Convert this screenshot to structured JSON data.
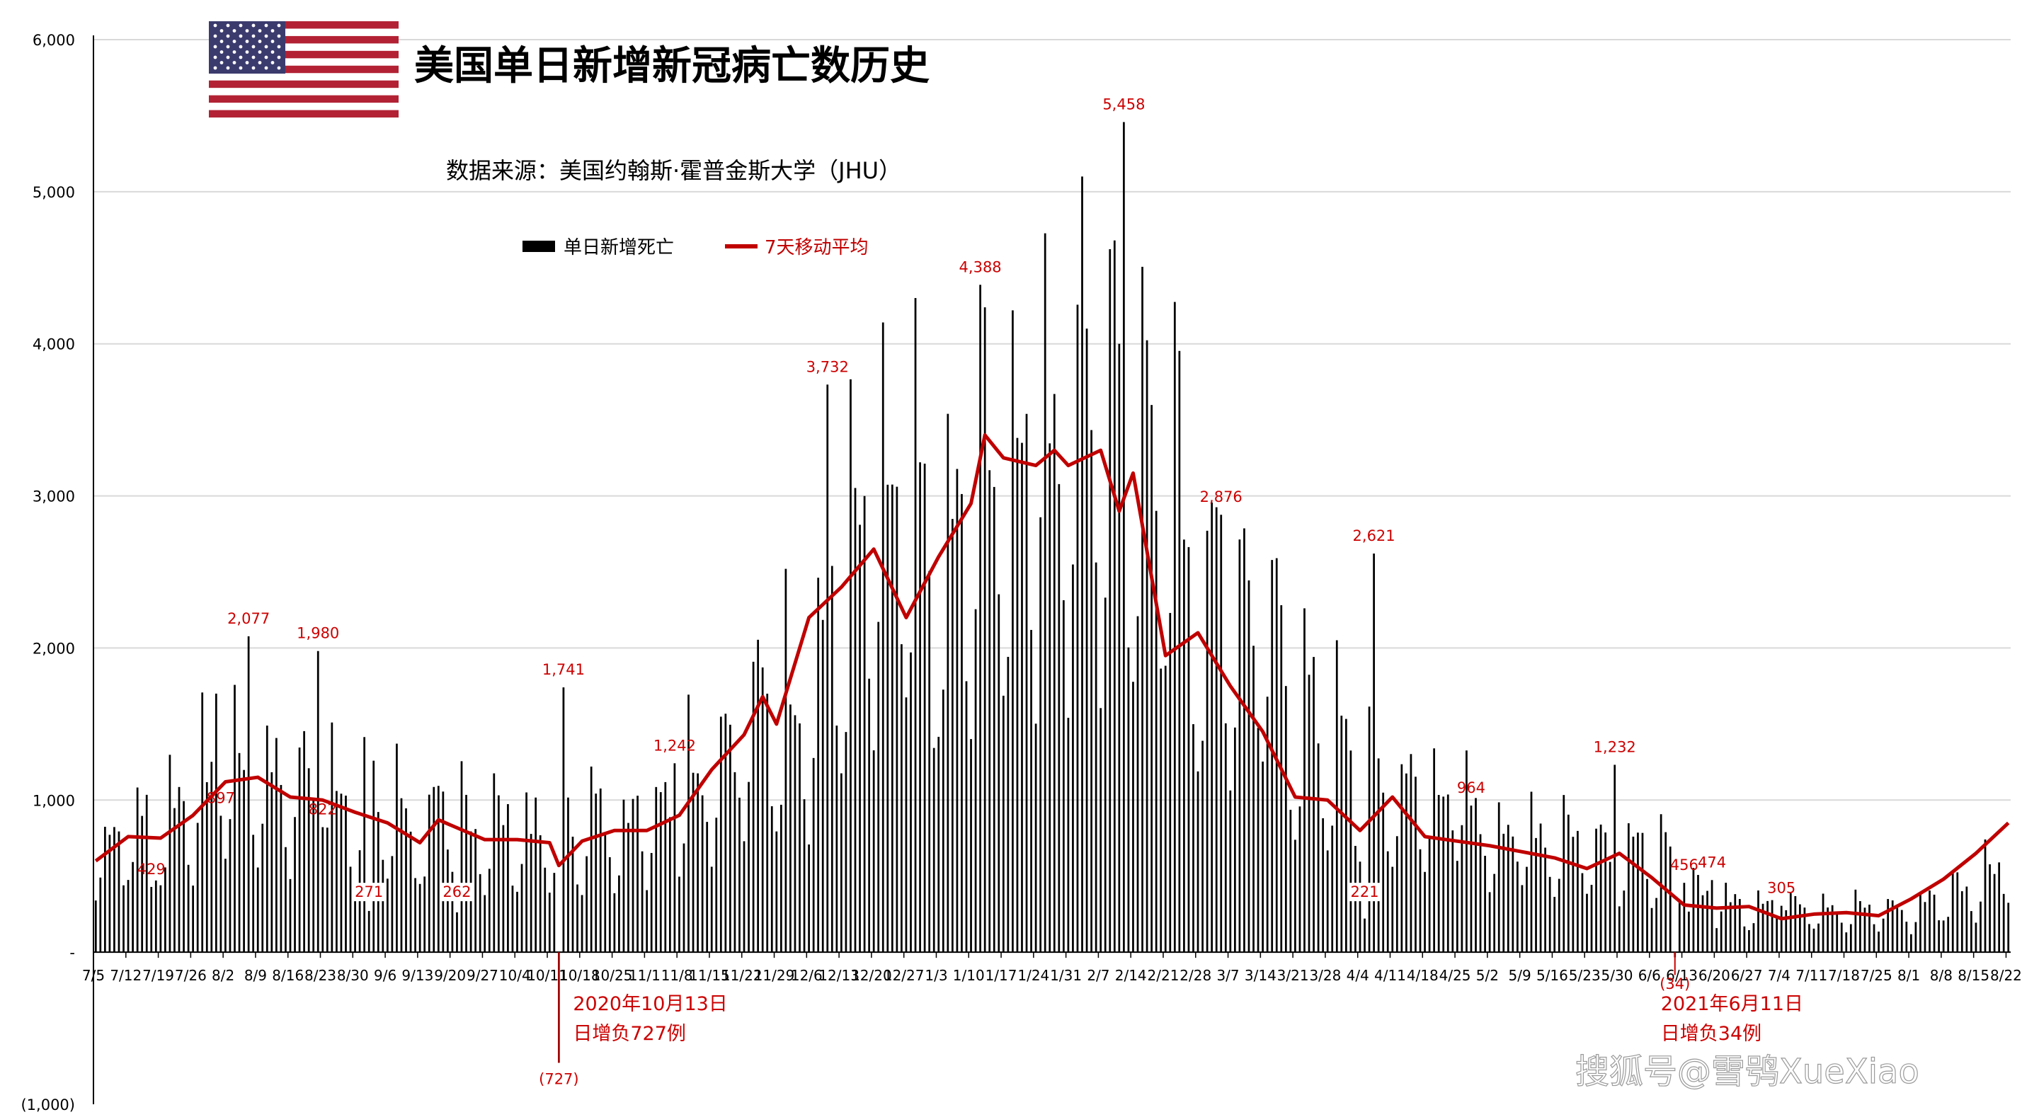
{
  "chart_data": {
    "type": "bar",
    "title": "美国单日新增新冠病亡数历史",
    "source": "数据来源：美国约翰斯·霍普金斯大学（JHU）",
    "legend": [
      {
        "name": "单日新增死亡",
        "color": "#000000",
        "kind": "bar"
      },
      {
        "name": "7天移动平均",
        "color": "#c00000",
        "kind": "line"
      }
    ],
    "legend_position": "top-left",
    "grid": true,
    "ylim": [
      -1000,
      6000
    ],
    "y_ticks": [
      {
        "value": 6000,
        "label": "6,000"
      },
      {
        "value": 5000,
        "label": "5,000"
      },
      {
        "value": 4000,
        "label": "4,000"
      },
      {
        "value": 3000,
        "label": "3,000"
      },
      {
        "value": 2000,
        "label": "2,000"
      },
      {
        "value": 1000,
        "label": "1,000"
      },
      {
        "value": 0,
        "label": "-"
      },
      {
        "value": -1000,
        "label": "(1,000)"
      }
    ],
    "x_start": "7/5",
    "days": 414,
    "x_tick_labels": [
      "7/5",
      "7/12",
      "7/19",
      "7/26",
      "8/2",
      "8/9",
      "8/16",
      "8/23",
      "8/30",
      "9/6",
      "9/13",
      "9/20",
      "9/27",
      "10/4",
      "10/11",
      "10/18",
      "10/25",
      "11/1",
      "11/8",
      "11/15",
      "11/22",
      "11/29",
      "12/6",
      "12/13",
      "12/20",
      "12/27",
      "1/3",
      "1/10",
      "1/17",
      "1/24",
      "1/31",
      "2/7",
      "2/14",
      "2/21",
      "2/28",
      "3/7",
      "3/14",
      "3/21",
      "3/28",
      "4/4",
      "4/11",
      "4/18",
      "4/25",
      "5/2",
      "5/9",
      "5/16",
      "5/23",
      "5/30",
      "6/6",
      "6/13",
      "6/20",
      "6/27",
      "7/4",
      "7/11",
      "7/18",
      "7/25",
      "8/1",
      "8/8",
      "8/15",
      "8/22"
    ],
    "x_tick_every_days": 7,
    "series": [
      {
        "name": "单日新增死亡",
        "type": "bar",
        "weekly_avg": [
          620,
          760,
          800,
          950,
          1150,
          1120,
          1030,
          1010,
          930,
          880,
          750,
          850,
          760,
          760,
          690,
          780,
          800,
          850,
          1000,
          1200,
          1350,
          1520,
          1550,
          2200,
          2450,
          2650,
          2200,
          2600,
          2900,
          3300,
          3100,
          3300,
          3250,
          3150,
          2250,
          2100,
          2000,
          1500,
          1300,
          1050,
          1000,
          950,
          1000,
          760,
          720,
          710,
          700,
          640,
          600,
          450,
          310,
          290,
          320,
          300,
          240,
          270,
          250,
          350,
          430,
          580,
          800
        ],
        "weekly_amplitude": [
          0.45,
          0.45,
          0.45,
          0.45,
          0.45,
          0.45,
          0.45,
          0.45,
          0.45,
          0.45,
          0.45,
          0.45,
          0.45,
          0.45,
          0.45,
          0.45,
          0.45,
          0.45,
          0.45,
          0.45,
          0.45,
          0.45,
          0.45,
          0.45,
          0.45,
          0.45,
          0.45,
          0.45,
          0.45,
          0.45,
          0.45,
          0.45,
          0.45,
          0.45,
          0.45,
          0.45,
          0.45,
          0.45,
          0.45,
          0.45,
          0.45,
          0.45,
          0.45,
          0.45,
          0.45,
          0.45,
          0.45,
          0.45,
          0.45,
          0.45,
          0.45,
          0.45,
          0.45,
          0.45,
          0.45,
          0.45,
          0.45,
          0.45,
          0.45,
          0.45,
          0.45
        ],
        "highlights": [
          {
            "date": "8/7",
            "value": 2077,
            "label": "2,077"
          },
          {
            "date": "9/2",
            "value": 271,
            "label": "271"
          },
          {
            "date": "9/21",
            "value": 262,
            "label": "262"
          },
          {
            "date": "10/13",
            "value": -727,
            "label": "(727)"
          },
          {
            "date": "10/14",
            "value": 1741,
            "label": "1,741"
          },
          {
            "date": "11/7",
            "value": 1242,
            "label": "1,242"
          },
          {
            "date": "12/10",
            "value": 3732,
            "label": "3,732"
          },
          {
            "date": "1/12",
            "value": 4388,
            "label": "4,388"
          },
          {
            "date": "2/12",
            "value": 5458,
            "label": "5,458"
          },
          {
            "date": "3/5",
            "value": 2876,
            "label": "2,876"
          },
          {
            "date": "4/7",
            "value": 2621,
            "label": "2,621"
          },
          {
            "date": "4/5",
            "value": 221,
            "label": "221"
          },
          {
            "date": "4/28",
            "value": 964,
            "label": "964"
          },
          {
            "date": "5/29",
            "value": 1232,
            "label": "1,232"
          },
          {
            "date": "6/11",
            "value": -34,
            "label": "(34)"
          },
          {
            "date": "6/13",
            "value": 456,
            "label": "456"
          },
          {
            "date": "6/19",
            "value": 474,
            "label": "474"
          },
          {
            "date": "7/4",
            "value": 305,
            "label": "305"
          },
          {
            "date": "7/17",
            "value": 429,
            "label": "429"
          },
          {
            "date": "8/1",
            "value": 897,
            "label": "897"
          },
          {
            "date": "8/22",
            "value": 1980,
            "label": "1,980"
          },
          {
            "date": "8/23",
            "value": 822,
            "label": "822"
          }
        ],
        "extra_spikes": [
          {
            "date": "7/31",
            "value": 1700
          },
          {
            "date": "1/13",
            "value": 4240
          },
          {
            "date": "1/19",
            "value": 4220
          },
          {
            "date": "2/3",
            "value": 5100
          },
          {
            "date": "2/4",
            "value": 4100
          },
          {
            "date": "2/11",
            "value": 4000
          }
        ]
      },
      {
        "name": "7天移动平均",
        "type": "line",
        "color": "#c00000",
        "points": [
          [
            "7/5",
            600
          ],
          [
            "7/12",
            760
          ],
          [
            "7/19",
            750
          ],
          [
            "7/26",
            900
          ],
          [
            "8/2",
            1120
          ],
          [
            "8/9",
            1150
          ],
          [
            "8/16",
            1020
          ],
          [
            "8/23",
            1000
          ],
          [
            "8/30",
            920
          ],
          [
            "9/6",
            850
          ],
          [
            "9/13",
            720
          ],
          [
            "9/17",
            870
          ],
          [
            "9/27",
            740
          ],
          [
            "10/4",
            740
          ],
          [
            "10/11",
            720
          ],
          [
            "10/13",
            570
          ],
          [
            "10/18",
            730
          ],
          [
            "10/25",
            800
          ],
          [
            "11/1",
            800
          ],
          [
            "11/8",
            900
          ],
          [
            "11/15",
            1200
          ],
          [
            "11/22",
            1430
          ],
          [
            "11/26",
            1680
          ],
          [
            "11/29",
            1500
          ],
          [
            "12/6",
            2200
          ],
          [
            "12/13",
            2400
          ],
          [
            "12/20",
            2650
          ],
          [
            "12/27",
            2200
          ],
          [
            "1/3",
            2600
          ],
          [
            "1/10",
            2950
          ],
          [
            "1/13",
            3400
          ],
          [
            "1/17",
            3250
          ],
          [
            "1/24",
            3200
          ],
          [
            "1/28",
            3300
          ],
          [
            "1/31",
            3200
          ],
          [
            "2/7",
            3300
          ],
          [
            "2/11",
            2900
          ],
          [
            "2/14",
            3150
          ],
          [
            "2/21",
            1950
          ],
          [
            "2/28",
            2100
          ],
          [
            "3/7",
            1750
          ],
          [
            "3/14",
            1450
          ],
          [
            "3/21",
            1020
          ],
          [
            "3/28",
            1000
          ],
          [
            "4/4",
            800
          ],
          [
            "4/11",
            1020
          ],
          [
            "4/18",
            760
          ],
          [
            "4/25",
            730
          ],
          [
            "5/2",
            700
          ],
          [
            "5/9",
            660
          ],
          [
            "5/16",
            620
          ],
          [
            "5/23",
            550
          ],
          [
            "5/30",
            650
          ],
          [
            "6/6",
            490
          ],
          [
            "6/13",
            310
          ],
          [
            "6/20",
            290
          ],
          [
            "6/27",
            300
          ],
          [
            "7/4",
            220
          ],
          [
            "7/11",
            250
          ],
          [
            "7/18",
            260
          ],
          [
            "7/25",
            240
          ],
          [
            "8/1",
            350
          ],
          [
            "8/8",
            480
          ],
          [
            "8/15",
            650
          ],
          [
            "8/22",
            850
          ]
        ]
      }
    ],
    "annotations": [
      {
        "date": "10/13",
        "lines": [
          "2020年10月13日",
          "日增负727例"
        ]
      },
      {
        "date": "6/11",
        "lines": [
          "2021年6月11日",
          "日增负34例"
        ]
      }
    ]
  },
  "watermark": "搜狐号@雪鸮XueXiao",
  "colors": {
    "bar": "#000000",
    "line": "#c00000",
    "label": "#cc0000",
    "grid": "#d9d9d9"
  },
  "flag_icon": "us-flag-icon"
}
